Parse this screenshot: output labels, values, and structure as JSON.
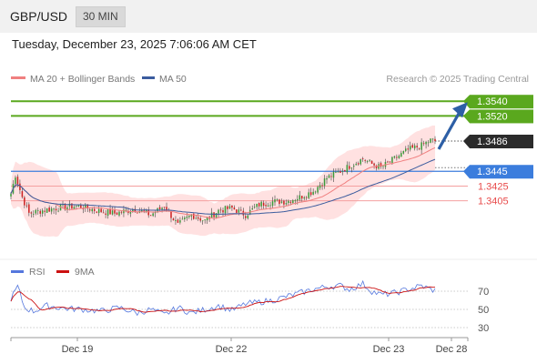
{
  "header": {
    "symbol": "GBP/USD",
    "timeframe": "30 MIN",
    "timestamp": "Tuesday, December 23, 2025 7:06:06 AM CET"
  },
  "legend": {
    "ma20": "MA 20 + Bollinger Bands",
    "ma50": "MA 50",
    "credit": "Research © 2025 Trading Central",
    "rsi": "RSI",
    "rsi_ma": "9MA"
  },
  "colors": {
    "up": "#3a9a3a",
    "down": "#cc2222",
    "ma20": "#f08080",
    "ma50": "#3b5c9e",
    "bands": "#ffdcdc",
    "target": "#5aa81e",
    "pivot": "#3b7ddd",
    "support": "#e84b4b",
    "current": "#2b2b2b",
    "arrow": "#2d5fa6",
    "rsi": "#5577dd",
    "rsi_ma": "#cc1111"
  },
  "chart_data": [
    {
      "type": "candlestick",
      "ylim": [
        1.3338,
        1.356
      ],
      "x_ticks": [
        "Dec 19",
        "Dec 22",
        "Dec 23",
        "Dec 28"
      ],
      "levels": [
        {
          "value": 1.354,
          "label": "1.3540",
          "kind": "target",
          "boxed": true
        },
        {
          "value": 1.352,
          "label": "1.3520",
          "kind": "target",
          "boxed": true
        },
        {
          "value": 1.3486,
          "label": "1.3486",
          "kind": "current",
          "boxed": true
        },
        {
          "value": 1.3445,
          "label": "1.3445",
          "kind": "pivot",
          "boxed": true
        },
        {
          "value": 1.3425,
          "label": "1.3425",
          "kind": "support",
          "boxed": false
        },
        {
          "value": 1.3405,
          "label": "1.3405",
          "kind": "support",
          "boxed": false
        }
      ],
      "close_anchors": [
        [
          0,
          1.3415
        ],
        [
          2,
          1.344
        ],
        [
          5,
          1.341
        ],
        [
          8,
          1.3388
        ],
        [
          14,
          1.3392
        ],
        [
          22,
          1.3396
        ],
        [
          30,
          1.3398
        ],
        [
          38,
          1.3392
        ],
        [
          46,
          1.3388
        ],
        [
          55,
          1.3394
        ],
        [
          62,
          1.3386
        ],
        [
          68,
          1.3398
        ],
        [
          74,
          1.3372
        ],
        [
          80,
          1.3386
        ],
        [
          86,
          1.3378
        ],
        [
          92,
          1.3392
        ],
        [
          98,
          1.3395
        ],
        [
          104,
          1.3386
        ],
        [
          110,
          1.34
        ],
        [
          116,
          1.3404
        ],
        [
          122,
          1.3404
        ],
        [
          128,
          1.341
        ],
        [
          134,
          1.3418
        ],
        [
          140,
          1.3436
        ],
        [
          146,
          1.3445
        ],
        [
          150,
          1.3452
        ],
        [
          156,
          1.3462
        ],
        [
          160,
          1.3455
        ],
        [
          164,
          1.345
        ],
        [
          170,
          1.3462
        ],
        [
          176,
          1.3474
        ],
        [
          182,
          1.348
        ],
        [
          186,
          1.3487
        ],
        [
          188,
          1.3486
        ]
      ],
      "rsi": {
        "levels": [
          70,
          50,
          30
        ],
        "anchors": [
          [
            0,
            62
          ],
          [
            3,
            75
          ],
          [
            6,
            52
          ],
          [
            10,
            48
          ],
          [
            16,
            54
          ],
          [
            24,
            51
          ],
          [
            32,
            50
          ],
          [
            40,
            48
          ],
          [
            48,
            52
          ],
          [
            56,
            46
          ],
          [
            62,
            50
          ],
          [
            68,
            44
          ],
          [
            74,
            52
          ],
          [
            80,
            46
          ],
          [
            86,
            50
          ],
          [
            92,
            54
          ],
          [
            98,
            49
          ],
          [
            104,
            56
          ],
          [
            110,
            58
          ],
          [
            116,
            60
          ],
          [
            122,
            64
          ],
          [
            128,
            68
          ],
          [
            134,
            72
          ],
          [
            140,
            75
          ],
          [
            146,
            76
          ],
          [
            150,
            72
          ],
          [
            156,
            78
          ],
          [
            160,
            70
          ],
          [
            164,
            66
          ],
          [
            170,
            68
          ],
          [
            176,
            72
          ],
          [
            182,
            76
          ],
          [
            186,
            72
          ],
          [
            188,
            71
          ]
        ]
      }
    }
  ]
}
